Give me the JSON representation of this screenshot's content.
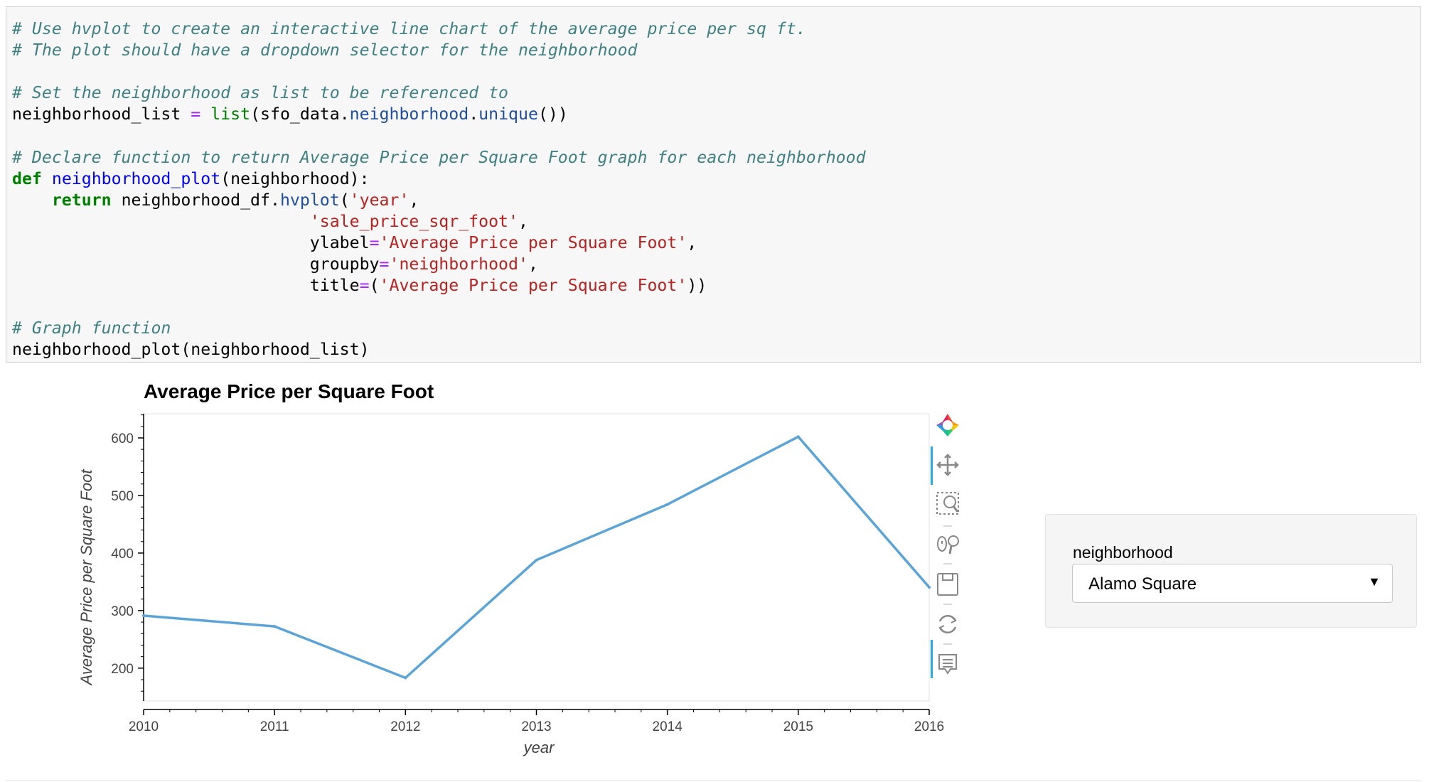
{
  "code_lines": [
    [
      {
        "c": "cm",
        "t": "# Use hvplot to create an interactive line chart of the average price per sq ft."
      }
    ],
    [
      {
        "c": "cm",
        "t": "# The plot should have a dropdown selector for the neighborhood"
      }
    ],
    [],
    [
      {
        "c": "cm",
        "t": "# Set the neighborhood as list to be referenced to"
      }
    ],
    [
      {
        "c": "",
        "t": "neighborhood_list "
      },
      {
        "c": "op",
        "t": "="
      },
      {
        "c": "",
        "t": " "
      },
      {
        "c": "bi",
        "t": "list"
      },
      {
        "c": "",
        "t": "(sfo_data."
      },
      {
        "c": "at",
        "t": "neighborhood"
      },
      {
        "c": "",
        "t": "."
      },
      {
        "c": "at",
        "t": "unique"
      },
      {
        "c": "",
        "t": "())"
      }
    ],
    [],
    [
      {
        "c": "cm",
        "t": "# Declare function to return Average Price per Square Foot graph for each neighborhood"
      }
    ],
    [
      {
        "c": "kw",
        "t": "def"
      },
      {
        "c": "",
        "t": " "
      },
      {
        "c": "fn",
        "t": "neighborhood_plot"
      },
      {
        "c": "",
        "t": "(neighborhood):"
      }
    ],
    [
      {
        "c": "",
        "t": "    "
      },
      {
        "c": "kw",
        "t": "return"
      },
      {
        "c": "",
        "t": " neighborhood_df."
      },
      {
        "c": "at",
        "t": "hvplot"
      },
      {
        "c": "",
        "t": "("
      },
      {
        "c": "st",
        "t": "'year'"
      },
      {
        "c": "",
        "t": ","
      }
    ],
    [
      {
        "c": "",
        "t": "                              "
      },
      {
        "c": "st",
        "t": "'sale_price_sqr_foot'"
      },
      {
        "c": "",
        "t": ","
      }
    ],
    [
      {
        "c": "",
        "t": "                              ylabel"
      },
      {
        "c": "op",
        "t": "="
      },
      {
        "c": "st",
        "t": "'Average Price per Square Foot'"
      },
      {
        "c": "",
        "t": ","
      }
    ],
    [
      {
        "c": "",
        "t": "                              groupby"
      },
      {
        "c": "op",
        "t": "="
      },
      {
        "c": "st",
        "t": "'neighborhood'"
      },
      {
        "c": "",
        "t": ","
      }
    ],
    [
      {
        "c": "",
        "t": "                              title"
      },
      {
        "c": "op",
        "t": "="
      },
      {
        "c": "",
        "t": "("
      },
      {
        "c": "st",
        "t": "'Average Price per Square Foot'"
      },
      {
        "c": "",
        "t": "))"
      }
    ],
    [],
    [
      {
        "c": "cm",
        "t": "# Graph function"
      }
    ],
    [
      {
        "c": "",
        "t": "neighborhood_plot(neighborhood_list)"
      }
    ]
  ],
  "chart_data": {
    "type": "line",
    "title": "Average Price per Square Foot",
    "xlabel": "year",
    "ylabel": "Average Price per Square Foot",
    "x": [
      2010,
      2011,
      2012,
      2013,
      2014,
      2015,
      2016
    ],
    "series": [
      {
        "values": [
          291.18,
          272.53,
          183.1,
          387.79,
          484.44,
          602.13,
          340.51
        ],
        "color": "#5ba4d8"
      }
    ],
    "x_ticks": [
      "2010",
      "2011",
      "2012",
      "2013",
      "2014",
      "2015",
      "2016"
    ],
    "y_ticks": [
      "200",
      "300",
      "400",
      "500",
      "600"
    ],
    "xlim": [
      2010,
      2016
    ],
    "ylim": [
      143,
      642
    ],
    "grid": false
  },
  "toolbar": {
    "icons": [
      "bokeh-logo-icon",
      "pan-icon",
      "box-zoom-icon",
      "wheel-zoom-icon",
      "save-icon",
      "reset-icon",
      "hover-icon"
    ]
  },
  "widget": {
    "label": "neighborhood",
    "selected": "Alamo Square"
  }
}
